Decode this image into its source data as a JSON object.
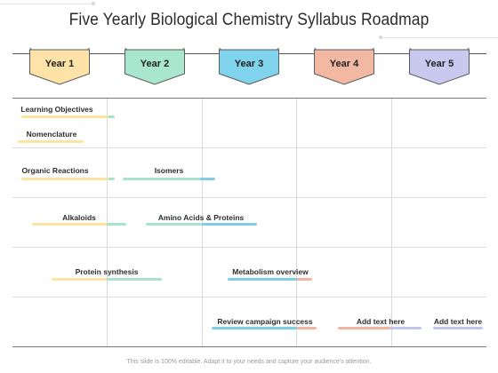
{
  "title": "Five Yearly Biological Chemistry Syllabus Roadmap",
  "years": [
    {
      "label": "Year 1",
      "color": "#fde3a7"
    },
    {
      "label": "Year 2",
      "color": "#a8e6cf"
    },
    {
      "label": "Year 3",
      "color": "#7fd3ec"
    },
    {
      "label": "Year 4",
      "color": "#f2b8a2"
    },
    {
      "label": "Year 5",
      "color": "#c9c9f0"
    }
  ],
  "colors": {
    "yellow": "#fbe3a2",
    "green": "#a8e3cc",
    "blue": "#7fcde3",
    "salmon": "#f2b49e",
    "lavender": "#c3c7f0"
  },
  "items": [
    {
      "label": "Learning Objectives",
      "segments": [
        "yellow",
        "green"
      ]
    },
    {
      "label": "Nomenclature",
      "segments": [
        "yellow"
      ]
    },
    {
      "label": "Organic Reactions",
      "segments": [
        "yellow",
        "green"
      ]
    },
    {
      "label": "Isomers",
      "segments": [
        "green",
        "blue"
      ]
    },
    {
      "label": "Alkaloids",
      "segments": [
        "yellow",
        "green"
      ]
    },
    {
      "label": "Amino Acids & Proteins",
      "segments": [
        "green",
        "blue"
      ]
    },
    {
      "label": "Protein synthesis",
      "segments": [
        "yellow",
        "green"
      ]
    },
    {
      "label": "Metabolism overview",
      "segments": [
        "blue",
        "salmon"
      ]
    },
    {
      "label": "Review campaign success",
      "segments": [
        "blue",
        "salmon"
      ]
    },
    {
      "label": "Add text here",
      "segments": [
        "salmon",
        "lavender"
      ]
    },
    {
      "label": "Add text here",
      "segments": [
        "lavender"
      ]
    }
  ],
  "footer": "This slide is 100% editable. Adapt it to your needs and capture your audience's attention."
}
